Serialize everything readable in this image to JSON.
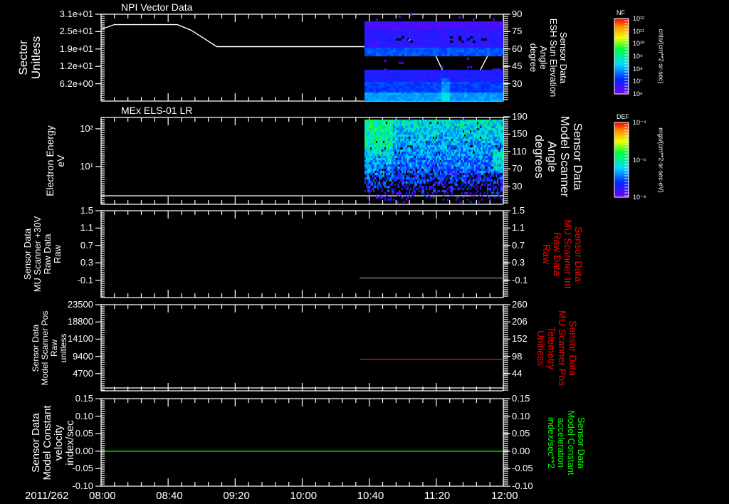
{
  "chart_data": [
    {
      "type": "heatmap",
      "title": "NPI Vector Data",
      "ylabel": [
        "Sector",
        "Unitless"
      ],
      "yticks_left": [
        "3.1e+01",
        "2.5e+01",
        "1.9e+01",
        "1.2e+01",
        "6.2e+00"
      ],
      "yticks_right": [
        "90",
        "75",
        "60",
        "45",
        "30"
      ],
      "ylabel_right": [
        "Sensor Data",
        "ESH Sun Elevation",
        "Angle",
        "degree"
      ],
      "ylim_right": [
        15,
        90
      ],
      "data_start_hour": 10.62,
      "overlay_line": {
        "name": "Sun Elevation Angle",
        "color": "#ffffff",
        "x": [
          8.0,
          8.13,
          8.76,
          8.9,
          9.15,
          10.99,
          11.05,
          11.19,
          11.35,
          11.53,
          11.7,
          12.0
        ],
        "y": [
          77,
          81,
          81,
          76,
          62,
          62,
          66,
          80,
          50,
          17,
          30,
          80
        ]
      },
      "colorbar": {
        "label": "NF",
        "ticks": [
          "10¹²",
          "10¹¹",
          "10¹⁰",
          "10⁹",
          "10⁸",
          "10⁷",
          "10⁶"
        ],
        "units": "cnts/(cm**2-sr-sec)"
      }
    },
    {
      "type": "heatmap",
      "title": "MEx ELS-01 LR",
      "ylabel": [
        "Electron Energy",
        "eV"
      ],
      "yticks_left": [
        "10²",
        "10¹"
      ],
      "ylim_log": [
        0,
        2.3
      ],
      "yticks_right": [
        "190",
        "150",
        "110",
        "70",
        "30"
      ],
      "ylabel_right": [
        "Sensor Data",
        "Model Scanner",
        "Angle",
        "degrees"
      ],
      "data_start_hour": 10.62,
      "colorbar": {
        "label": "DEF",
        "ticks": [
          "10⁻⁴",
          "10⁻⁶",
          "10⁻⁸"
        ],
        "units": "ergs/(cm**2-sr-sec-eV)"
      }
    },
    {
      "type": "line",
      "ylabel": [
        "Sensor Data",
        "MU Scanner +30V",
        "Raw Data",
        "Raw"
      ],
      "yticks_left": [
        "1.5",
        "1.1",
        "0.7",
        "0.3",
        "-0.1"
      ],
      "ylim": [
        -0.5,
        1.5
      ],
      "yticks_right": [
        "1.5",
        "1.1",
        "0.7",
        "0.3",
        "-0.1"
      ],
      "ylabel_right": [
        "Sensor Data",
        "MU Scanner Int",
        "Raw Data",
        "Raw"
      ],
      "right_label_color": "#ff0000",
      "series": [
        {
          "name": "MU Scanner Int",
          "color": "#808080",
          "x": [
            10.57,
            12.0
          ],
          "y": [
            -0.05,
            -0.05
          ]
        }
      ]
    },
    {
      "type": "line",
      "ylabel": [
        "Sensor Data",
        "Model Scanner Pos",
        "Raw",
        "unitless"
      ],
      "yticks_left": [
        "23500",
        "18800",
        "14100",
        "9400",
        "4700"
      ],
      "yticks_right": [
        "260",
        "206",
        "152",
        "98",
        "44"
      ],
      "ylim_right": [
        -10,
        260
      ],
      "ylabel_right": [
        "Sensor Data",
        "MU Scanner Pos",
        "Telemetry",
        "Unitless"
      ],
      "right_label_color": "#ff0000",
      "series": [
        {
          "name": "MU Scanner Pos",
          "color": "#ff0000",
          "x": [
            10.57,
            12.0
          ],
          "y": [
            88,
            88
          ]
        }
      ]
    },
    {
      "type": "line",
      "ylabel": [
        "Sensor Data",
        "Model Constant",
        "velocity",
        "index/sec"
      ],
      "yticks_left": [
        "0.15",
        "0.10",
        "0.05",
        "0.00",
        "-0.05",
        "-0.10"
      ],
      "ylim": [
        -0.1,
        0.15
      ],
      "yticks_right": [
        "0.15",
        "0.10",
        "0.05",
        "0.00",
        "-0.05",
        "-0.10"
      ],
      "ylabel_right": [
        "Sensor Data",
        "Model Constant",
        "acceleration",
        "index/sec**2"
      ],
      "right_label_color": "#00ff00",
      "series": [
        {
          "name": "velocity",
          "color": "#00ff00",
          "x": [
            8.0,
            12.0
          ],
          "y": [
            0.0,
            0.0
          ]
        }
      ]
    }
  ],
  "xaxis": {
    "date_label": "2011/262",
    "ticks": [
      "08:00",
      "08:40",
      "09:20",
      "10:00",
      "10:40",
      "11:20",
      "12:00"
    ],
    "xlim_hours": [
      8.0,
      12.0
    ]
  }
}
